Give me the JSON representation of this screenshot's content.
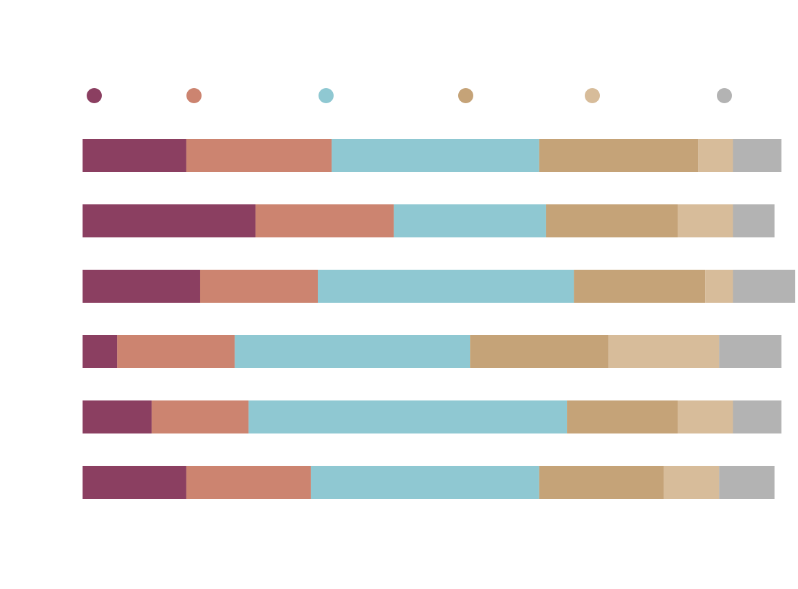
{
  "chart_data": {
    "type": "bar",
    "stacked": true,
    "orientation": "horizontal",
    "categories": [
      null,
      null,
      null,
      null,
      null,
      null
    ],
    "series": [
      {
        "color": "#8b3f61",
        "values": [
          15,
          25,
          17,
          5,
          10,
          15
        ]
      },
      {
        "color": "#cc8470",
        "values": [
          21,
          20,
          17,
          17,
          14,
          18
        ]
      },
      {
        "color": "#8fc8d2",
        "values": [
          30,
          22,
          37,
          34,
          46,
          33
        ]
      },
      {
        "color": "#c5a378",
        "values": [
          23,
          19,
          19,
          20,
          16,
          18
        ]
      },
      {
        "color": "#d7bc9a",
        "values": [
          5,
          8,
          4,
          16,
          8,
          8
        ]
      },
      {
        "color": "#b3b3b3",
        "values": [
          7,
          6,
          9,
          9,
          7,
          8
        ]
      }
    ]
  }
}
